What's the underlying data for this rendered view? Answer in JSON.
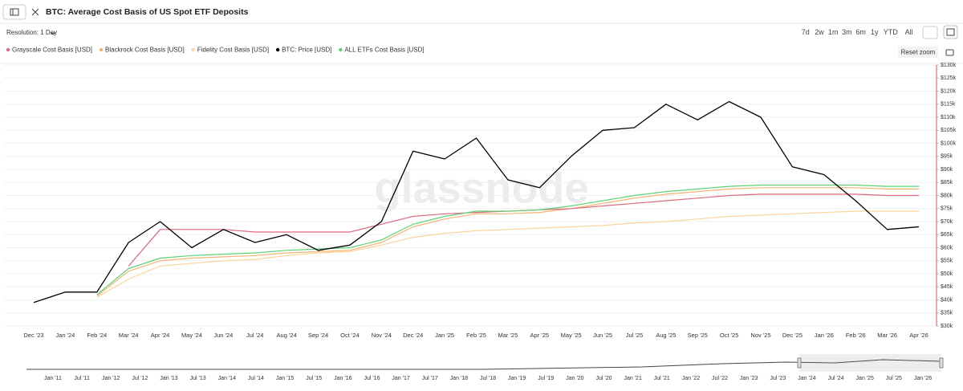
{
  "header": {
    "title": "BTC: Average Cost Basis of US Spot ETF Deposits",
    "resolution": "Resolution: 1 Day"
  },
  "toolbar": {
    "ranges": [
      "7d",
      "2w",
      "1m",
      "3m",
      "6m",
      "1y",
      "YTD",
      "All"
    ],
    "reset_zoom": "Reset zoom"
  },
  "chart_data": {
    "type": "line",
    "watermark": "glassnode",
    "x": [
      "Dec '23",
      "Jan '24",
      "Feb '24",
      "Mar '24",
      "Apr '24",
      "May '24",
      "Jun '24",
      "Jul '24",
      "Aug '24",
      "Sep '24",
      "Oct '24",
      "Nov '24",
      "Dec '24",
      "Jan '25",
      "Feb '25",
      "Mar '25",
      "Apr '25",
      "May '25",
      "Jun '25",
      "Jul '25",
      "Aug '25",
      "Sep '25",
      "Oct '25",
      "Nov '25",
      "Dec '25",
      "Jan '26",
      "Feb '26",
      "Mar '26",
      "Apr '26"
    ],
    "series": [
      {
        "name": "Grayscale Cost Basis [USD]",
        "color": "#e0687f",
        "values": [
          null,
          null,
          null,
          53000,
          67000,
          67000,
          67000,
          66000,
          66000,
          66000,
          66000,
          69000,
          72000,
          73000,
          73500,
          74000,
          74500,
          75000,
          76000,
          77000,
          78000,
          79000,
          80000,
          80500,
          80500,
          80500,
          80500,
          80000,
          80000
        ]
      },
      {
        "name": "Blackrock Cost Basis [USD]",
        "color": "#f4b36f",
        "values": [
          null,
          null,
          41500,
          51000,
          55000,
          56000,
          56500,
          57000,
          58000,
          58500,
          59000,
          62000,
          68000,
          71000,
          73000,
          73000,
          73500,
          75000,
          77000,
          79000,
          80500,
          81500,
          82500,
          83000,
          83000,
          83000,
          83000,
          82500,
          82500
        ]
      },
      {
        "name": "Fidelity Cost Basis [USD]",
        "color": "#fbd59c",
        "values": [
          null,
          null,
          41000,
          48000,
          53000,
          54000,
          55000,
          55500,
          57000,
          58000,
          58500,
          61000,
          64000,
          65500,
          66500,
          67000,
          67500,
          68000,
          68500,
          69500,
          70000,
          71000,
          72000,
          72500,
          73000,
          73500,
          74000,
          74000,
          74000
        ]
      },
      {
        "name": "BTC: Price [USD]",
        "color": "#000000",
        "values": [
          39000,
          43000,
          43000,
          62000,
          70000,
          60000,
          67000,
          62000,
          65000,
          59000,
          61000,
          70000,
          97000,
          94000,
          102000,
          86000,
          83000,
          95000,
          105000,
          106000,
          115000,
          109000,
          116000,
          110000,
          91000,
          88000,
          78000,
          67000,
          68000
        ]
      },
      {
        "name": "ALL ETFs Cost Basis [USD]",
        "color": "#5cd376",
        "values": [
          null,
          null,
          42000,
          52000,
          56000,
          57000,
          57500,
          58000,
          59000,
          59500,
          60000,
          63000,
          69000,
          72000,
          74000,
          74000,
          74500,
          76000,
          78000,
          80000,
          81500,
          82500,
          83500,
          84000,
          84000,
          84000,
          84000,
          83500,
          83500
        ]
      }
    ],
    "ylim": [
      30000,
      130000
    ],
    "yticks": [
      {
        "value": 30000,
        "label": "$30k"
      },
      {
        "value": 35000,
        "label": "$35k"
      },
      {
        "value": 40000,
        "label": "$40k"
      },
      {
        "value": 45000,
        "label": "$45k"
      },
      {
        "value": 50000,
        "label": "$50k"
      },
      {
        "value": 55000,
        "label": "$55k"
      },
      {
        "value": 60000,
        "label": "$60k"
      },
      {
        "value": 65000,
        "label": "$65k"
      },
      {
        "value": 70000,
        "label": "$70k"
      },
      {
        "value": 75000,
        "label": "$75k"
      },
      {
        "value": 80000,
        "label": "$80k"
      },
      {
        "value": 85000,
        "label": "$85k"
      },
      {
        "value": 90000,
        "label": "$90k"
      },
      {
        "value": 95000,
        "label": "$95k"
      },
      {
        "value": 100000,
        "label": "$100k"
      },
      {
        "value": 105000,
        "label": "$105k"
      },
      {
        "value": 110000,
        "label": "$110k"
      },
      {
        "value": 115000,
        "label": "$115k"
      },
      {
        "value": 120000,
        "label": "$120k"
      },
      {
        "value": 125000,
        "label": "$125k"
      },
      {
        "value": 130000,
        "label": "$130k"
      }
    ],
    "grid": true
  },
  "navigator": {
    "labels": [
      "Jan '11",
      "Jul '11",
      "Jan '12",
      "Jul '12",
      "Jan '13",
      "Jul '13",
      "Jan '14",
      "Jul '14",
      "Jan '15",
      "Jul '15",
      "Jan '16",
      "Jul '16",
      "Jan '17",
      "Jul '17",
      "Jan '18",
      "Jul '18",
      "Jan '19",
      "Jul '19",
      "Jan '20",
      "Jul '20",
      "Jan '21",
      "Jul '21",
      "Jan '22",
      "Jul '22",
      "Jan '23",
      "Jul '23",
      "Jan '24",
      "Jul '24",
      "Jan '25",
      "Jul '25",
      "Jan '26"
    ]
  }
}
